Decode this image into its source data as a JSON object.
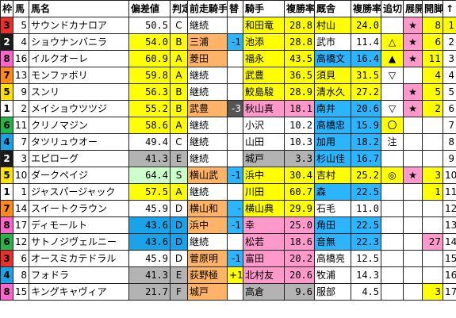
{
  "headers": [
    "枠",
    "馬",
    "馬名",
    "偏差値",
    "判定",
    "前走騎手",
    "替",
    "騎手",
    "複勝率",
    "厩舎",
    "複勝率",
    "追切",
    "展開",
    "開脚",
    "↑"
  ],
  "colors": {
    "waku": {
      "1": "#ffffff",
      "2": "#1a1a1a",
      "3": "#e8302a",
      "4": "#1aa3e8",
      "5": "#ffe300",
      "6": "#29b34a",
      "7": "#ff8a1a",
      "8": "#ff66cc"
    },
    "yellow": "#ffff00",
    "green_light": "#ccffcc",
    "pink": "#ff99cc",
    "orange": "#ffb366",
    "blue": "#2bb5ff",
    "gray": "#b3b3b3",
    "gray_dark": "#555555"
  },
  "rows": [
    {
      "waku": "3",
      "uma": "5",
      "name": "サウンドカナロア",
      "dev": "50.5",
      "grade": "C",
      "prev": "継続",
      "chg": "",
      "jockey": "和田竜",
      "jr": "28.8",
      "stable": "村山",
      "sr": "24.0",
      "oikiri": "",
      "tenkai": "★",
      "kaikyaku": "8",
      "arrow": "1"
    },
    {
      "waku": "2",
      "uma": "4",
      "name": "ショウナンバニラ",
      "dev": "54.0",
      "grade": "B",
      "prev": "三浦",
      "chg": "-1",
      "jockey": "池添",
      "jr": "28.8",
      "stable": "武市",
      "sr": "11.4",
      "oikiri": "△",
      "tenkai": "★",
      "kaikyaku": "6",
      "arrow": "2"
    },
    {
      "waku": "8",
      "uma": "16",
      "name": "イルクオーレ",
      "dev": "60.9",
      "grade": "A",
      "prev": "菱田",
      "chg": "",
      "jockey": "福永",
      "jr": "43.5",
      "stable": "高橋文",
      "sr": "16.4",
      "oikiri": "▲",
      "tenkai": "★",
      "kaikyaku": "11",
      "arrow": "3"
    },
    {
      "waku": "7",
      "uma": "13",
      "name": "モンファボリ",
      "dev": "59.8",
      "grade": "A",
      "prev": "継続",
      "chg": "",
      "jockey": "武豊",
      "jr": "36.5",
      "stable": "須貝",
      "sr": "31.5",
      "oikiri": "▽",
      "tenkai": "",
      "kaikyaku": "4",
      "arrow": "4"
    },
    {
      "waku": "5",
      "uma": "9",
      "name": "スンリ",
      "dev": "56.3",
      "grade": "B",
      "prev": "継続",
      "chg": "",
      "jockey": "鮫島駿",
      "jr": "28.9",
      "stable": "清水久",
      "sr": "27.2",
      "oikiri": "",
      "tenkai": "★",
      "kaikyaku": "5",
      "arrow": "5"
    },
    {
      "waku": "1",
      "uma": "2",
      "name": "メイショウツツジ",
      "dev": "55.2",
      "grade": "B",
      "prev": "武豊",
      "chg": "-3",
      "jockey": "秋山真",
      "jr": "18.1",
      "stable": "南井",
      "sr": "20.6",
      "oikiri": "▽",
      "tenkai": "★",
      "kaikyaku": "2",
      "arrow": "6"
    },
    {
      "waku": "6",
      "uma": "11",
      "name": "クリノマジン",
      "dev": "58.6",
      "grade": "A",
      "prev": "継続",
      "chg": "",
      "jockey": "小沢",
      "jr": "10.2",
      "stable": "高橋忠",
      "sr": "15.9",
      "oikiri": "〇",
      "tenkai": "",
      "kaikyaku": "",
      "arrow": "7"
    },
    {
      "waku": "4",
      "uma": "7",
      "name": "タツリュウオー",
      "dev": "49.4",
      "grade": "C",
      "prev": "継続",
      "chg": "",
      "jockey": "山田",
      "jr": "10.3",
      "stable": "加用",
      "sr": "18.2",
      "oikiri": "注",
      "tenkai": "",
      "kaikyaku": "",
      "arrow": "8"
    },
    {
      "waku": "2",
      "uma": "3",
      "name": "エピローグ",
      "dev": "41.3",
      "grade": "E",
      "prev": "継続",
      "chg": "",
      "jockey": "城戸",
      "jr": "3.3",
      "stable": "杉山佳",
      "sr": "16.7",
      "oikiri": "",
      "tenkai": "",
      "kaikyaku": "",
      "arrow": "9"
    },
    {
      "waku": "5",
      "uma": "10",
      "name": "ダークペイジ",
      "dev": "64.4",
      "grade": "S",
      "prev": "横山武",
      "chg": "-1",
      "jockey": "浜中",
      "jr": "30.4",
      "stable": "吉村",
      "sr": "25.2",
      "oikiri": "◎",
      "tenkai": "★",
      "kaikyaku": "3",
      "arrow": "10"
    },
    {
      "waku": "1",
      "uma": "1",
      "name": "ジャスパージャック",
      "dev": "57.5",
      "grade": "A",
      "prev": "継続",
      "chg": "",
      "jockey": "川田",
      "jr": "60.7",
      "stable": "森",
      "sr": "22.5",
      "oikiri": "",
      "tenkai": "",
      "kaikyaku": "1",
      "arrow": "11"
    },
    {
      "waku": "7",
      "uma": "14",
      "name": "スイートクラウン",
      "dev": "45.9",
      "grade": "D",
      "prev": "横山和",
      "chg": "-",
      "jockey": "横山典",
      "jr": "29.9",
      "stable": "石毛",
      "sr": "11.0",
      "oikiri": "",
      "tenkai": "",
      "kaikyaku": "",
      "arrow": "12"
    },
    {
      "waku": "8",
      "uma": "17",
      "name": "ディモールト",
      "dev": "43.6",
      "grade": "D",
      "prev": "浜中",
      "chg": "-1",
      "jockey": "幸",
      "jr": "25.0",
      "stable": "角田",
      "sr": "22.5",
      "oikiri": "",
      "tenkai": "",
      "kaikyaku": "",
      "arrow": "13"
    },
    {
      "waku": "6",
      "uma": "12",
      "name": "サトノジヴェルニー",
      "dev": "43.6",
      "grade": "D",
      "prev": "継続",
      "chg": "",
      "jockey": "松若",
      "jr": "18.6",
      "stable": "音無",
      "sr": "22.3",
      "oikiri": "",
      "tenkai": "",
      "kaikyaku": "27",
      "arrow": "14"
    },
    {
      "waku": "3",
      "uma": "6",
      "name": "オースミカテドラル",
      "dev": "45.9",
      "grade": "D",
      "prev": "菅原明",
      "chg": "-1",
      "jockey": "富田",
      "jr": "20.2",
      "stable": "高橋亮",
      "sr": "12.5",
      "oikiri": "",
      "tenkai": "",
      "kaikyaku": "",
      "arrow": "15"
    },
    {
      "waku": "4",
      "uma": "8",
      "name": "フォドラ",
      "dev": "41.3",
      "grade": "E",
      "prev": "荻野極",
      "chg": "+1",
      "jockey": "北村友",
      "jr": "20.6",
      "stable": "牧浦",
      "sr": "14.3",
      "oikiri": "",
      "tenkai": "",
      "kaikyaku": "",
      "arrow": "16"
    },
    {
      "waku": "8",
      "uma": "15",
      "name": "キングキャヴィア",
      "dev": "21.7",
      "grade": "F",
      "prev": "城戸",
      "chg": "",
      "jockey": "高倉",
      "jr": "9.6",
      "stable": "服部",
      "sr": "4.5",
      "oikiri": "",
      "tenkai": "",
      "kaikyaku": "3",
      "arrow": "17"
    }
  ]
}
